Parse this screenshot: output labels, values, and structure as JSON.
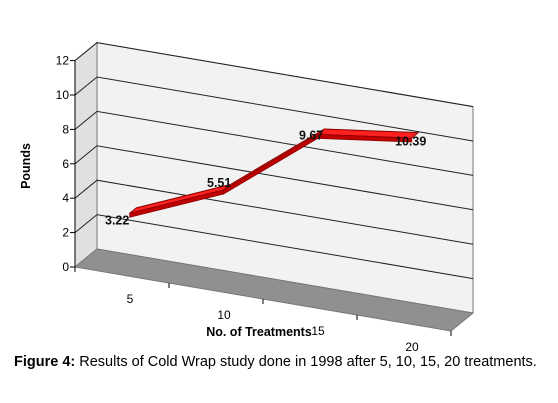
{
  "figure": {
    "label": "Figure 4:",
    "text": " Results of Cold Wrap study done in 1998 after 5, 10, 15, 20 treatments."
  },
  "chart_data": {
    "type": "line",
    "style": "3d-ribbon",
    "categories": [
      "5",
      "10",
      "15",
      "20"
    ],
    "series": [
      {
        "values": [
          3.22,
          5.51,
          9.67,
          10.39
        ],
        "color": "#ff2020"
      }
    ],
    "data_labels": [
      "3.22",
      "5.51",
      "9.67",
      "10.39"
    ],
    "xlabel": "No. of Treatments",
    "ylabel": "Pounds",
    "ylim": [
      0,
      12
    ],
    "yticks": [
      0,
      2,
      4,
      6,
      8,
      10,
      12
    ],
    "grid": true,
    "legend": "none",
    "colors": {
      "floor": "#909090",
      "back_wall": "#f2f2f2",
      "side_wall": "#e0e0e0",
      "gridline": "#222222",
      "ribbon": "#ff2020",
      "ribbon_edge": "#8a0000"
    }
  }
}
